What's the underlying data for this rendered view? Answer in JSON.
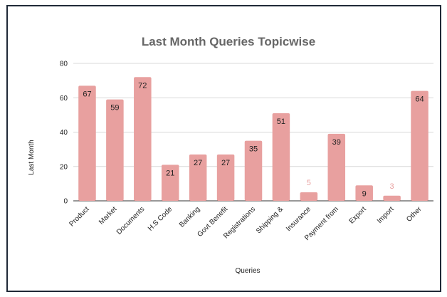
{
  "chart_data": {
    "type": "bar",
    "title": "Last Month Queries Topicwise",
    "xlabel": "Queries",
    "ylabel": "Last Month",
    "ylim": [
      0,
      80
    ],
    "yticks": [
      0,
      20,
      40,
      60,
      80
    ],
    "grid": true,
    "legend": "none",
    "bar_color": "#e8a09f",
    "categories": [
      "Product",
      "Market",
      "Documents",
      "H.S Code",
      "Banking",
      "Govt Benefit",
      "Registrations",
      "Shipping &",
      "Insurance",
      "Payment from",
      "Export",
      "Import",
      "Other"
    ],
    "values": [
      67,
      59,
      72,
      21,
      27,
      27,
      35,
      51,
      5,
      39,
      9,
      3,
      64
    ]
  }
}
